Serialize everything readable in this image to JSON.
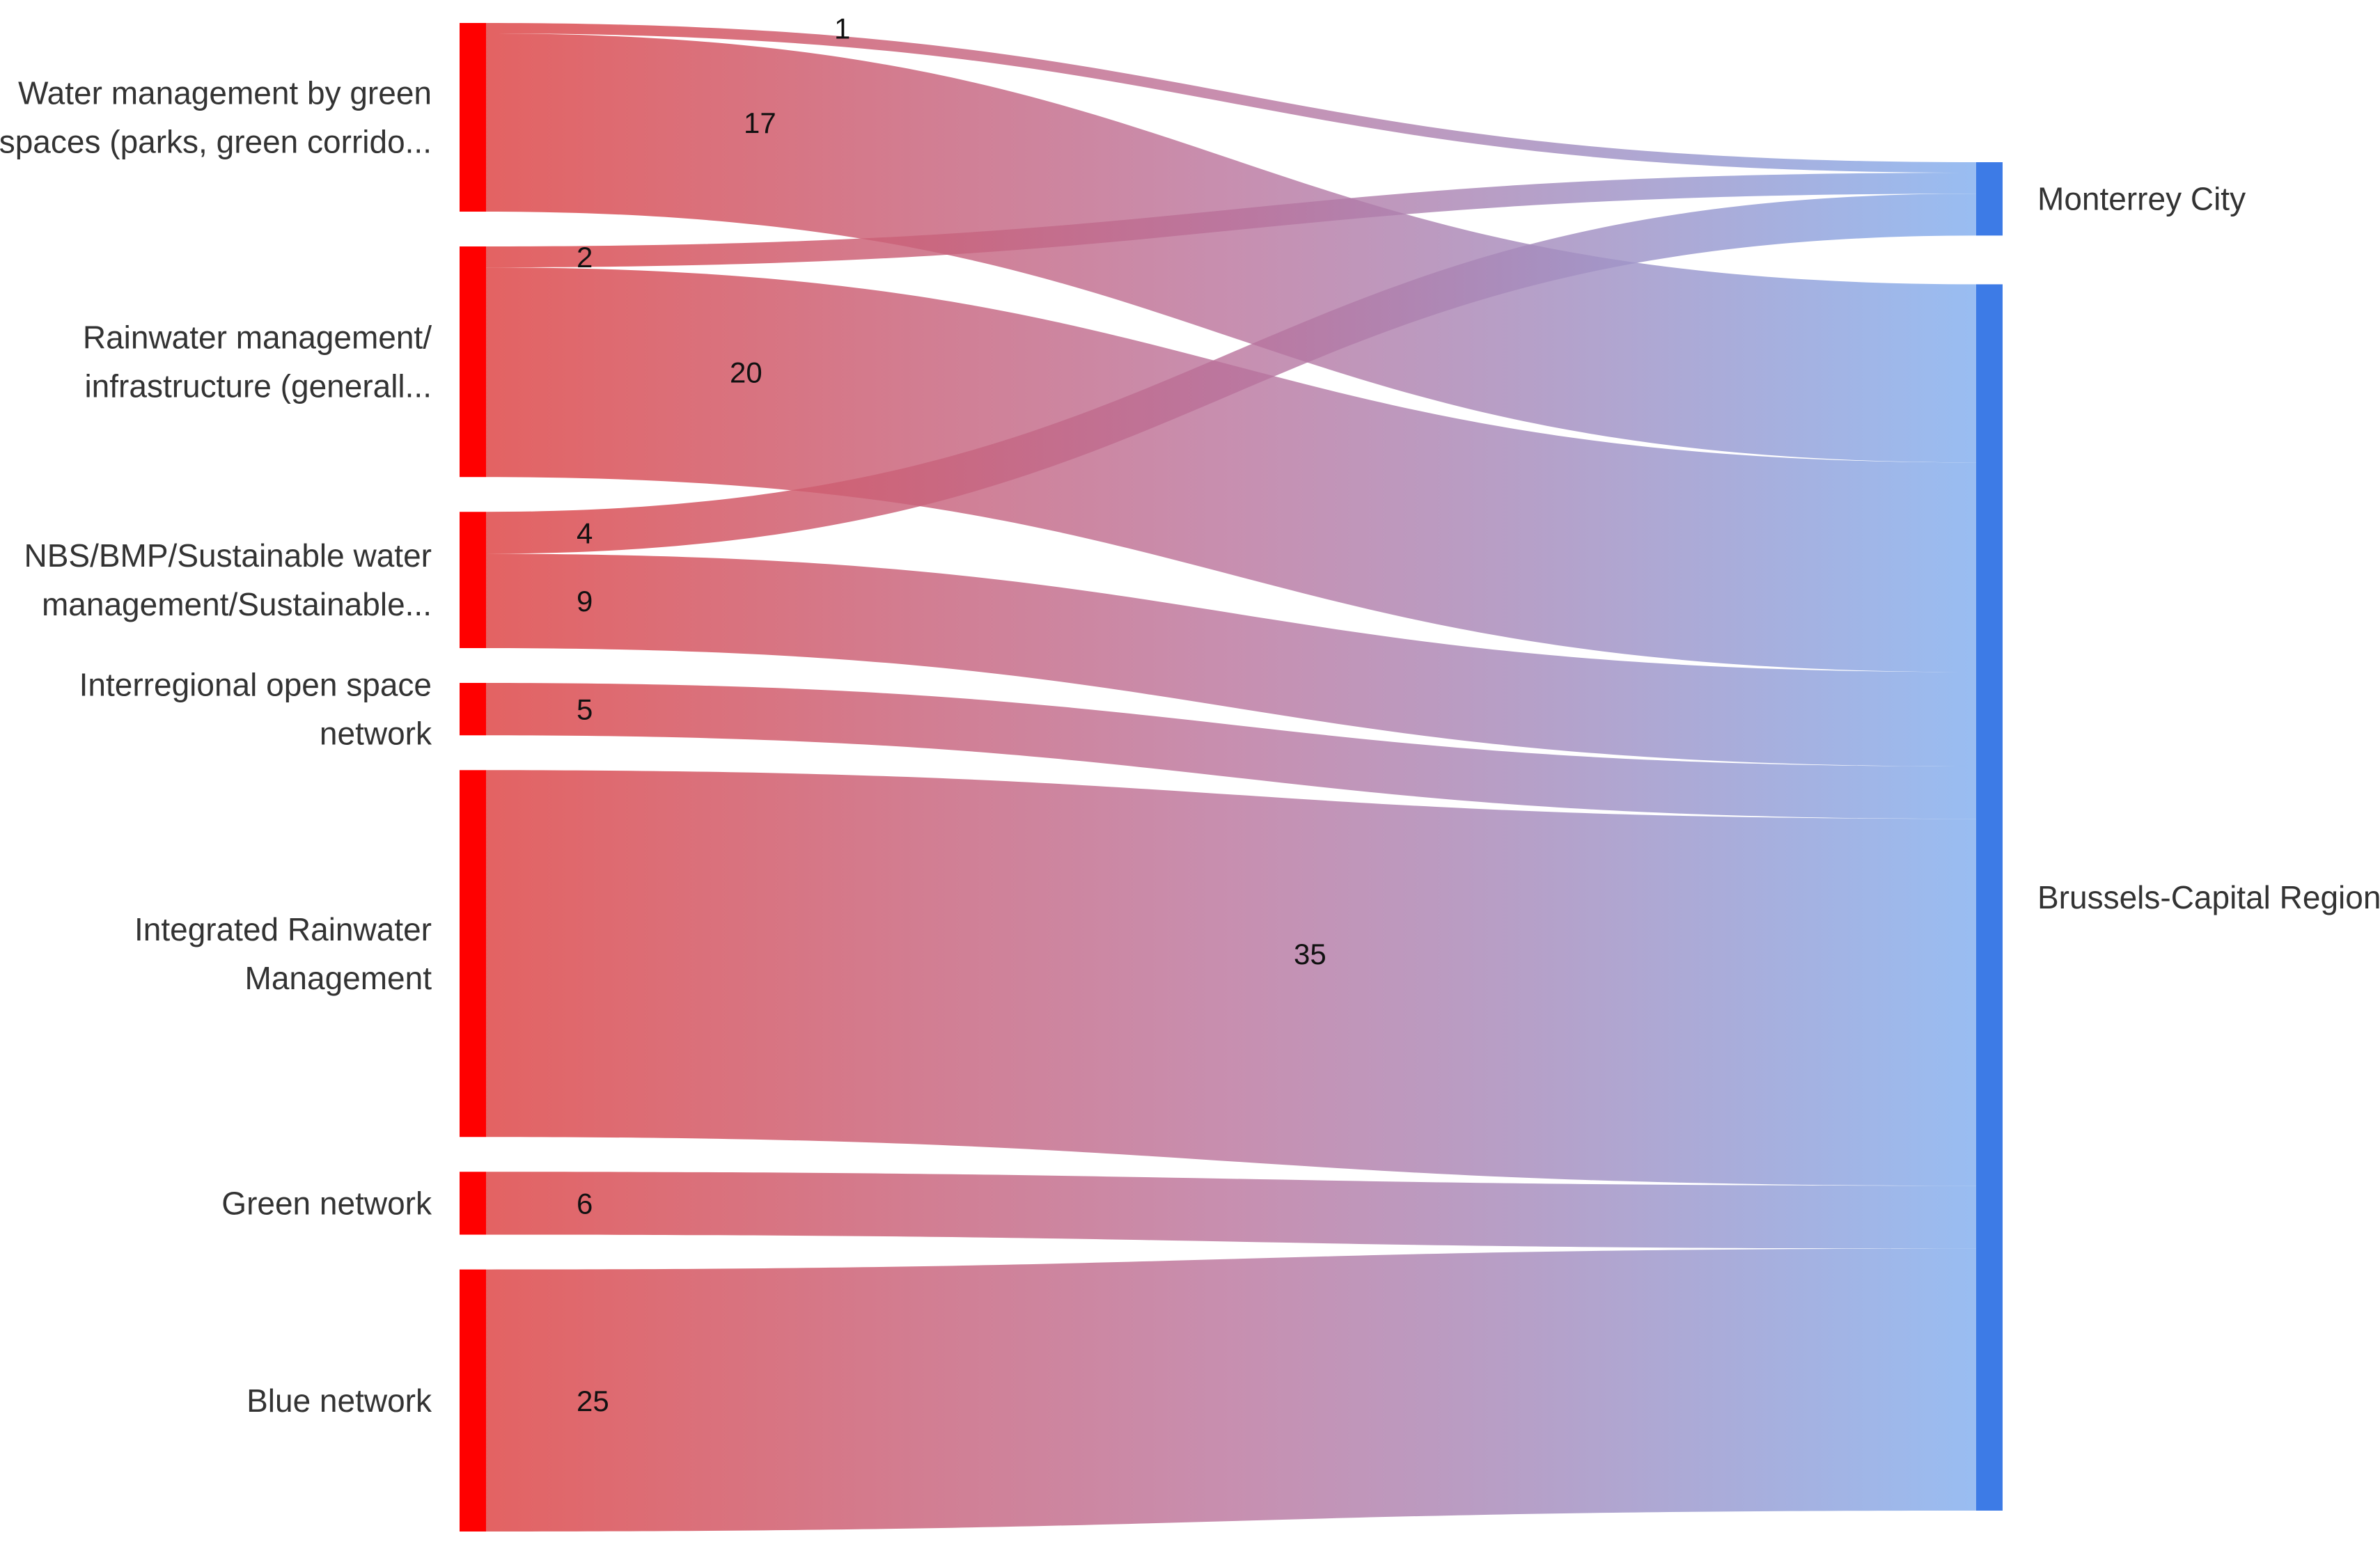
{
  "chart_data": {
    "type": "sankey",
    "sources": [
      {
        "id": "s0",
        "lines": [
          "Water management by green",
          "spaces (parks, green corrido..."
        ]
      },
      {
        "id": "s1",
        "lines": [
          "Rainwater management/",
          "infrastructure (generall..."
        ]
      },
      {
        "id": "s2",
        "lines": [
          "NBS/BMP/Sustainable water",
          "management/Sustainable..."
        ]
      },
      {
        "id": "s3",
        "lines": [
          "Interregional open space",
          "network"
        ]
      },
      {
        "id": "s4",
        "lines": [
          "Integrated Rainwater",
          "Management"
        ]
      },
      {
        "id": "s5",
        "lines": [
          "Green network"
        ]
      },
      {
        "id": "s6",
        "lines": [
          "Blue network"
        ]
      }
    ],
    "targets": [
      {
        "id": "t0",
        "label": "Monterrey City"
      },
      {
        "id": "t1",
        "label": "Brussels-Capital Region"
      }
    ],
    "links": [
      {
        "source": "s0",
        "target": "t0",
        "value": 1
      },
      {
        "source": "s0",
        "target": "t1",
        "value": 17
      },
      {
        "source": "s1",
        "target": "t0",
        "value": 2
      },
      {
        "source": "s1",
        "target": "t1",
        "value": 20
      },
      {
        "source": "s2",
        "target": "t0",
        "value": 4
      },
      {
        "source": "s2",
        "target": "t1",
        "value": 9
      },
      {
        "source": "s3",
        "target": "t1",
        "value": 5
      },
      {
        "source": "s4",
        "target": "t1",
        "value": 35
      },
      {
        "source": "s5",
        "target": "t1",
        "value": 6
      },
      {
        "source": "s6",
        "target": "t1",
        "value": 25
      }
    ],
    "colors": {
      "source_node": "#ff0000",
      "target_node": "#3d7be6",
      "link_start": "#e05050",
      "link_end": "#8ab4f0"
    }
  }
}
